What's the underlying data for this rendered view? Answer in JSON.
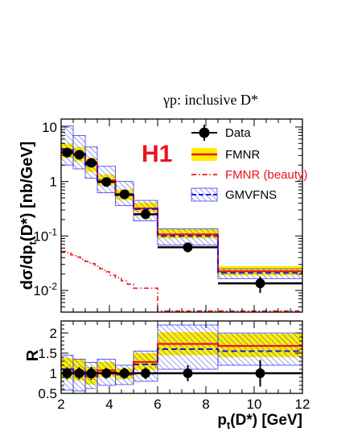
{
  "chart_data": {
    "type": "line",
    "title": "γp:  inclusive D*",
    "experiment_label": "H1",
    "xlabel": "p_t(D*) [GeV]",
    "xlim": [
      2,
      12
    ],
    "x_ticks": [
      2,
      4,
      6,
      8,
      10,
      12
    ],
    "bin_edges": [
      2,
      2.5,
      3,
      3.5,
      4.25,
      5,
      6,
      8.5,
      12
    ],
    "top_panel": {
      "ylabel": "dσ/dp_t(D*)  [nb/GeV]",
      "yscale": "log",
      "ylim": [
        0.004,
        14
      ],
      "y_tick_labels": [
        "10^{-2}",
        "10^{-1}",
        "1",
        "10"
      ],
      "series": [
        {
          "name": "Data",
          "style": "points",
          "color": "#000000",
          "x": [
            2.25,
            2.75,
            3.25,
            3.875,
            4.625,
            5.5,
            7.25,
            10.25
          ],
          "values": [
            3.4,
            3.1,
            2.2,
            0.98,
            0.58,
            0.25,
            0.062,
            0.0135
          ],
          "err_low": [
            0.5,
            0.45,
            0.35,
            0.13,
            0.08,
            0.035,
            0.012,
            0.0045
          ],
          "err_high": [
            0.5,
            0.45,
            0.35,
            0.13,
            0.08,
            0.035,
            0.012,
            0.0045
          ]
        },
        {
          "name": "FMNR",
          "style": "step",
          "line_color": "#e8141c",
          "band_color": "#ffee00",
          "values": [
            3.75,
            3.25,
            2.05,
            1.05,
            0.56,
            0.32,
            0.107,
            0.0225
          ],
          "band_low": [
            2.7,
            2.35,
            1.5,
            0.85,
            0.46,
            0.27,
            0.09,
            0.019
          ],
          "band_high": [
            5.0,
            4.3,
            2.7,
            1.35,
            0.72,
            0.41,
            0.135,
            0.028
          ]
        },
        {
          "name": "FMNR (beauty)",
          "style": "dashdot-step",
          "color": "#e8141c",
          "x": [
            2,
            2.2,
            2.4,
            2.6,
            2.8,
            3.0,
            3.2,
            3.4,
            3.6,
            3.8,
            4.0,
            4.25,
            4.5,
            4.75,
            5.0,
            5.5,
            6.0,
            8.5,
            12
          ],
          "values": [
            0.052,
            0.049,
            0.045,
            0.041,
            0.037,
            0.034,
            0.031,
            0.028,
            0.025,
            0.022,
            0.019,
            0.017,
            0.015,
            0.013,
            0.011,
            0.011,
            0.0042,
            0.0042,
            0.0042
          ]
        },
        {
          "name": "GMVFNS",
          "style": "step",
          "line_color": "#1a1adc",
          "band_color": "#4040ff",
          "values": [
            3.8,
            3.2,
            2.0,
            1.0,
            0.56,
            0.31,
            0.1,
            0.021
          ],
          "band_low": [
            2.0,
            1.7,
            1.15,
            0.62,
            0.36,
            0.19,
            0.068,
            0.0165
          ],
          "band_high": [
            10.5,
            7.0,
            4.3,
            1.9,
            1.0,
            0.45,
            0.135,
            0.025
          ]
        }
      ]
    },
    "bottom_panel": {
      "ylabel": "R",
      "ylim": [
        0.5,
        2.3
      ],
      "y_ticks": [
        0.5,
        1,
        1.5,
        2
      ],
      "y_tick_labels": [
        "0.5",
        "1",
        "1.5",
        "2"
      ],
      "series": [
        {
          "name": "Data",
          "style": "points",
          "x": [
            2.25,
            2.75,
            3.25,
            3.875,
            4.625,
            5.5,
            7.25,
            10.25
          ],
          "values": [
            1,
            1,
            1,
            1,
            1,
            1,
            1,
            1
          ],
          "err": [
            0.15,
            0.15,
            0.16,
            0.13,
            0.14,
            0.14,
            0.2,
            0.33
          ]
        },
        {
          "name": "FMNR",
          "style": "step",
          "values": [
            1.1,
            1.05,
            0.93,
            1.07,
            0.97,
            1.28,
            1.73,
            1.68
          ],
          "band_low": [
            0.86,
            0.82,
            0.72,
            0.9,
            0.85,
            1.08,
            1.45,
            1.4
          ],
          "band_high": [
            1.38,
            1.35,
            1.16,
            1.28,
            1.12,
            1.5,
            2.02,
            1.98
          ]
        },
        {
          "name": "GMVFNS",
          "style": "step",
          "values": [
            1.1,
            1.05,
            0.9,
            1.02,
            0.97,
            1.22,
            1.6,
            1.55
          ],
          "band_low": [
            0.58,
            0.56,
            0.62,
            0.7,
            0.72,
            0.8,
            1.1,
            1.2
          ],
          "band_high": [
            1.45,
            1.35,
            1.27,
            1.35,
            1.2,
            1.55,
            2.2,
            2.0
          ]
        }
      ]
    }
  }
}
